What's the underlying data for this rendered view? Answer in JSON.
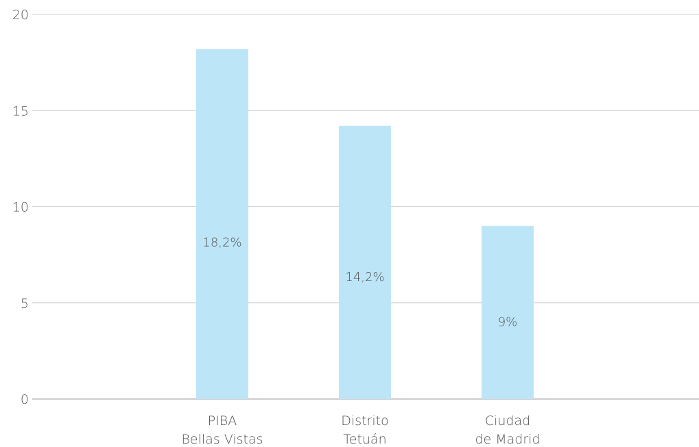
{
  "chart_data": {
    "type": "bar",
    "categories": [
      "PIBA\nBellas Vistas",
      "Distrito\nTetuán",
      "Ciudad\nde Madrid"
    ],
    "values": [
      18.2,
      14.2,
      9
    ],
    "value_labels": [
      "18,2%",
      "14,2%",
      "9%"
    ],
    "color": "#bde5f8",
    "ylim": [
      0,
      20
    ],
    "yticks": [
      0,
      5,
      10,
      15,
      20
    ],
    "grid": true
  }
}
